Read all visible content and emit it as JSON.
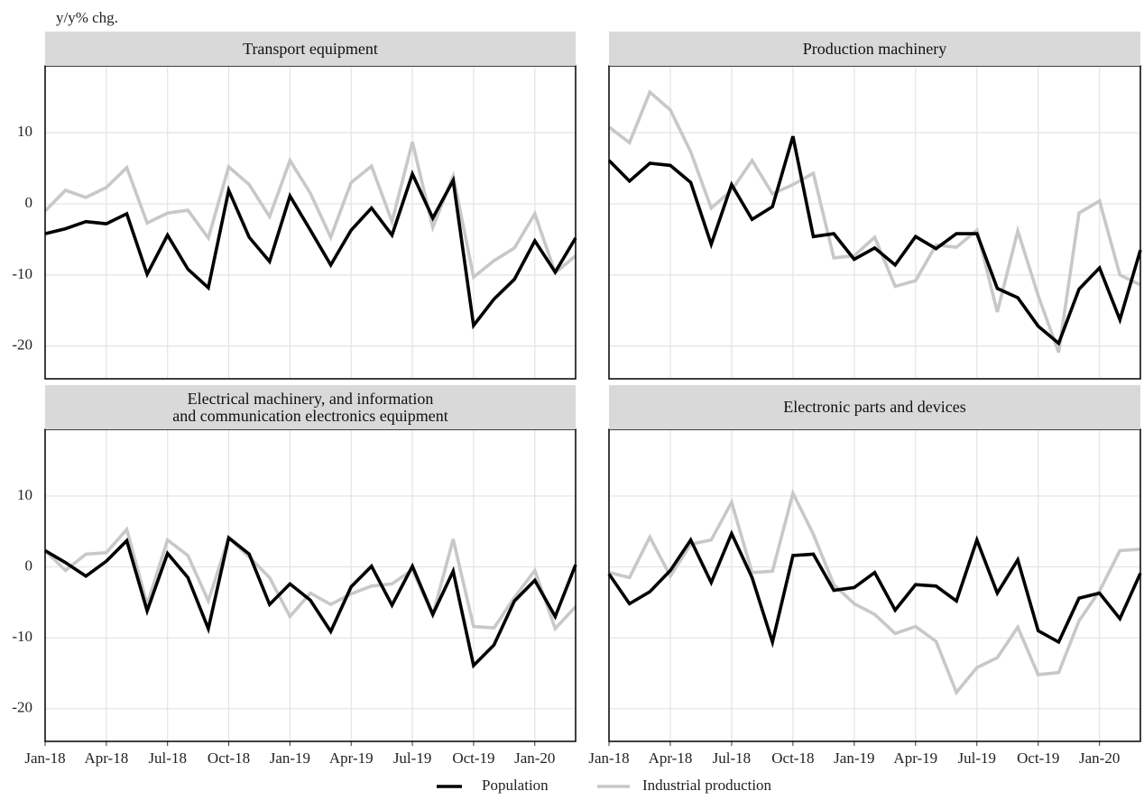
{
  "y_axis_label": "y/y% chg.",
  "chart_data": [
    {
      "type": "line",
      "title": "Transport equipment",
      "categories": [
        "Jan-18",
        null,
        null,
        "Apr-18",
        null,
        null,
        "Jul-18",
        null,
        null,
        "Oct-18",
        null,
        null,
        "Jan-19",
        null,
        null,
        "Apr-19",
        null,
        null,
        "Jul-19",
        null,
        null,
        "Oct-19",
        null,
        null,
        "Jan-20",
        null,
        null
      ],
      "series": [
        {
          "name": "Population",
          "color": "#000000",
          "values": [
            -4.2,
            -3.5,
            -2.5,
            -2.8,
            -1.4,
            -9.9,
            -4.4,
            -9.2,
            -11.8,
            1.9,
            -4.7,
            -8.1,
            1.1,
            -3.7,
            -8.6,
            -3.7,
            -0.6,
            -4.4,
            4.2,
            -2.0,
            3.3,
            -17.1,
            -13.4,
            -10.6,
            -5.2,
            -9.6,
            -4.8
          ]
        },
        {
          "name": "Industrial production",
          "color": "#c8c8c8",
          "values": [
            -1.0,
            1.9,
            0.9,
            2.3,
            5.1,
            -2.7,
            -1.3,
            -0.9,
            -4.8,
            5.2,
            2.7,
            -1.8,
            6.1,
            1.5,
            -4.7,
            3.0,
            5.3,
            -2.5,
            8.7,
            -3.3,
            3.9,
            -10.3,
            -8.0,
            -6.2,
            -1.4,
            -9.7,
            -7.3
          ]
        }
      ],
      "ylim": [
        -24.6,
        19.4
      ],
      "yticks": [
        -20,
        -10,
        0,
        10
      ],
      "grid": true
    },
    {
      "type": "line",
      "title": "Production machinery",
      "categories": [
        "Jan-18",
        null,
        null,
        "Apr-18",
        null,
        null,
        "Jul-18",
        null,
        null,
        "Oct-18",
        null,
        null,
        "Jan-19",
        null,
        null,
        "Apr-19",
        null,
        null,
        "Jul-19",
        null,
        null,
        "Oct-19",
        null,
        null,
        "Jan-20",
        null,
        null
      ],
      "series": [
        {
          "name": "Population",
          "color": "#000000",
          "values": [
            6.1,
            3.2,
            5.7,
            5.4,
            3.0,
            -5.7,
            2.7,
            -2.2,
            -0.4,
            9.5,
            -4.6,
            -4.2,
            -7.8,
            -6.2,
            -8.6,
            -4.6,
            -6.3,
            -4.2,
            -4.2,
            -11.9,
            -13.2,
            -17.2,
            -19.6,
            -12.0,
            -9.0,
            -16.3,
            -6.5
          ]
        },
        {
          "name": "Industrial production",
          "color": "#c8c8c8",
          "values": [
            10.8,
            8.6,
            15.7,
            13.2,
            7.3,
            -0.6,
            1.9,
            6.1,
            1.4,
            2.7,
            4.3,
            -7.6,
            -7.3,
            -4.7,
            -11.6,
            -10.8,
            -5.8,
            -6.1,
            -3.7,
            -15.2,
            -3.8,
            -12.9,
            -20.9,
            -1.3,
            0.4,
            -10.0,
            -11.4
          ]
        }
      ],
      "ylim": [
        -24.6,
        19.4
      ],
      "yticks": [
        -20,
        -10,
        0,
        10
      ],
      "grid": true
    },
    {
      "type": "line",
      "title": "Electrical machinery, and information\nand communication electronics equipment",
      "categories": [
        "Jan-18",
        null,
        null,
        "Apr-18",
        null,
        null,
        "Jul-18",
        null,
        null,
        "Oct-18",
        null,
        null,
        "Jan-19",
        null,
        null,
        "Apr-19",
        null,
        null,
        "Jul-19",
        null,
        null,
        "Oct-19",
        null,
        null,
        "Jan-20",
        null,
        null
      ],
      "series": [
        {
          "name": "Population",
          "color": "#000000",
          "values": [
            2.3,
            0.6,
            -1.3,
            0.8,
            3.7,
            -6.2,
            1.9,
            -1.5,
            -8.7,
            4.1,
            1.8,
            -5.3,
            -2.4,
            -4.7,
            -9.1,
            -2.8,
            0.1,
            -5.4,
            0.1,
            -6.7,
            -0.6,
            -13.9,
            -11.0,
            -4.8,
            -1.9,
            -7.0,
            0.3
          ]
        },
        {
          "name": "Industrial production",
          "color": "#c8c8c8",
          "values": [
            2.3,
            -0.5,
            1.8,
            2.0,
            5.3,
            -5.3,
            3.8,
            1.6,
            -4.8,
            4.1,
            1.4,
            -1.5,
            -7.0,
            -3.7,
            -5.3,
            -3.8,
            -2.7,
            -2.4,
            -0.4,
            -6.8,
            3.9,
            -8.4,
            -8.6,
            -4.3,
            -0.5,
            -8.7,
            -5.6
          ]
        }
      ],
      "ylim": [
        -24.6,
        19.4
      ],
      "yticks": [
        -20,
        -10,
        0,
        10
      ],
      "grid": true
    },
    {
      "type": "line",
      "title": "Electronic parts and devices",
      "categories": [
        "Jan-18",
        null,
        null,
        "Apr-18",
        null,
        null,
        "Jul-18",
        null,
        null,
        "Oct-18",
        null,
        null,
        "Jan-19",
        null,
        null,
        "Apr-19",
        null,
        null,
        "Jul-19",
        null,
        null,
        "Oct-19",
        null,
        null,
        "Jan-20",
        null,
        null
      ],
      "series": [
        {
          "name": "Population",
          "color": "#000000",
          "values": [
            -1.0,
            -5.2,
            -3.5,
            -0.5,
            3.8,
            -2.2,
            4.7,
            -1.5,
            -10.6,
            1.6,
            1.8,
            -3.3,
            -2.9,
            -0.8,
            -6.1,
            -2.5,
            -2.7,
            -4.8,
            3.8,
            -3.7,
            1.0,
            -9.0,
            -10.6,
            -4.4,
            -3.7,
            -7.3,
            -0.9
          ]
        },
        {
          "name": "Industrial production",
          "color": "#c8c8c8",
          "values": [
            -0.8,
            -1.5,
            4.2,
            -1.3,
            3.2,
            3.8,
            9.1,
            -0.8,
            -0.6,
            10.4,
            4.6,
            -2.5,
            -5.2,
            -6.7,
            -9.4,
            -8.4,
            -10.5,
            -17.7,
            -14.2,
            -12.8,
            -8.5,
            -15.2,
            -14.9,
            -7.6,
            -3.4,
            2.3,
            2.5
          ]
        }
      ],
      "ylim": [
        -24.6,
        19.4
      ],
      "yticks": [
        -20,
        -10,
        0,
        10
      ],
      "grid": true
    }
  ]
}
